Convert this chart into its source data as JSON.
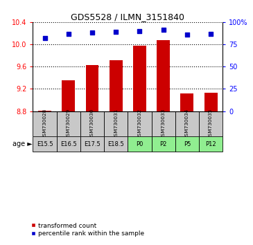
{
  "title": "GDS5528 / ILMN_3151840",
  "samples": [
    "GSM730028",
    "GSM730029",
    "GSM730030",
    "GSM730031",
    "GSM730032",
    "GSM730033",
    "GSM730034",
    "GSM730035"
  ],
  "age_labels": [
    "E15.5",
    "E16.5",
    "E17.5",
    "E18.5",
    "P0",
    "P2",
    "P5",
    "P12"
  ],
  "age_bg_colors": [
    "#c8c8c8",
    "#c8c8c8",
    "#c8c8c8",
    "#c8c8c8",
    "#90ee90",
    "#90ee90",
    "#90ee90",
    "#90ee90"
  ],
  "sample_bg_colors": [
    "#c8c8c8",
    "#c8c8c8",
    "#c8c8c8",
    "#c8c8c8",
    "#c8c8c8",
    "#c8c8c8",
    "#c8c8c8",
    "#c8c8c8"
  ],
  "transformed_counts": [
    8.81,
    9.35,
    9.63,
    9.72,
    9.97,
    10.08,
    9.12,
    9.13
  ],
  "percentile_ranks": [
    82,
    87,
    88,
    89,
    90,
    91,
    86,
    87
  ],
  "ylim_left": [
    8.8,
    10.4
  ],
  "ylim_right": [
    0,
    100
  ],
  "yticks_left": [
    8.8,
    9.2,
    9.6,
    10.0,
    10.4
  ],
  "yticks_right": [
    0,
    25,
    50,
    75,
    100
  ],
  "bar_color": "#cc0000",
  "dot_color": "#0000cc",
  "bar_width": 0.55,
  "legend_bar_label": "transformed count",
  "legend_dot_label": "percentile rank within the sample",
  "age_row_label": "age"
}
